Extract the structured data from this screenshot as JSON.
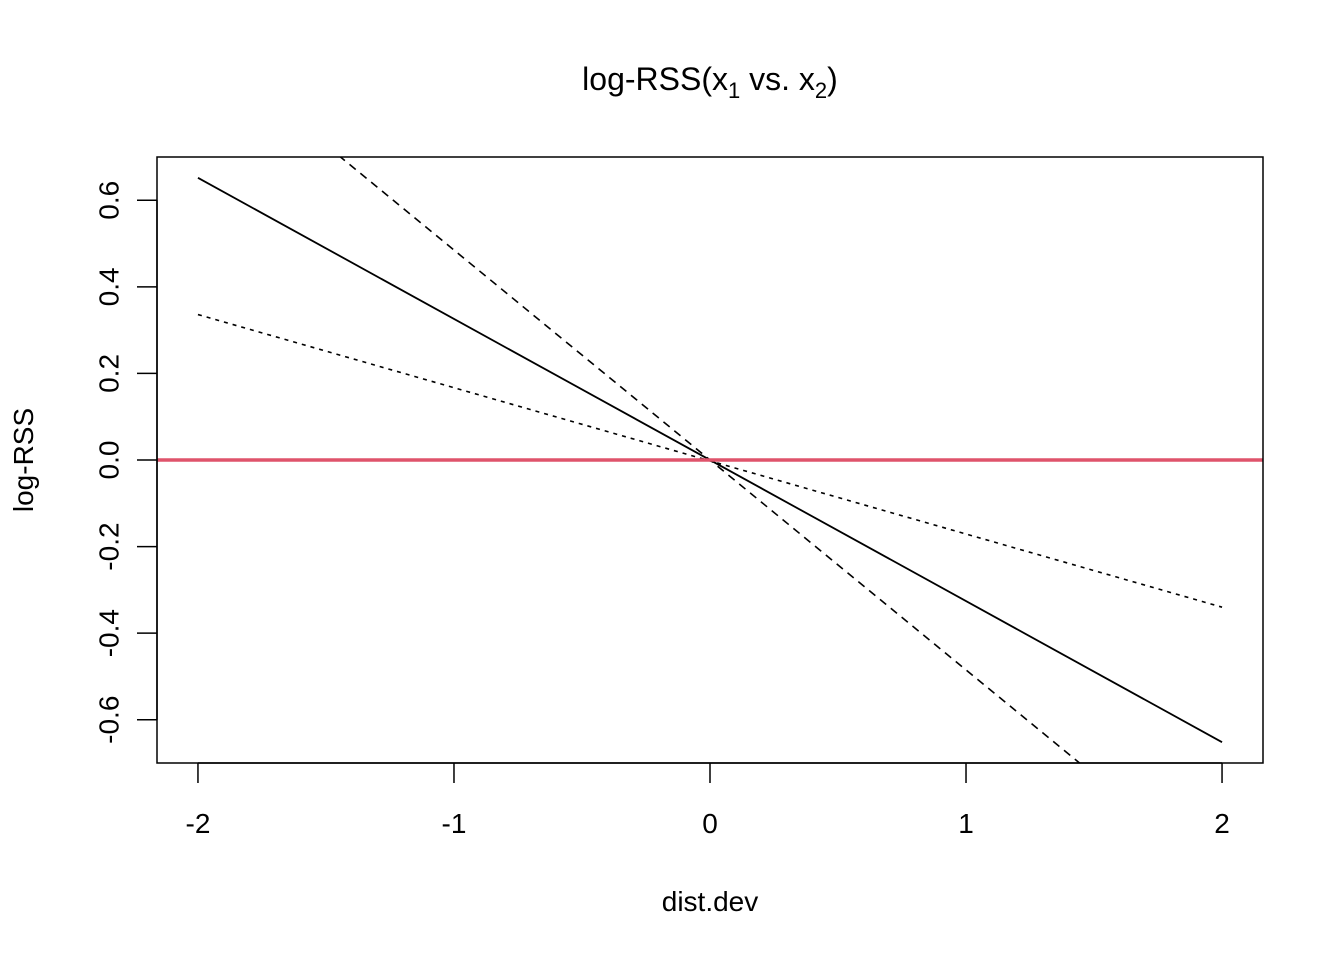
{
  "chart_data": {
    "type": "line",
    "title_main": "log-RSS(x",
    "title_sub1": "1",
    "title_mid": " vs. x",
    "title_sub2": "2",
    "title_end": ")",
    "xlabel": "dist.dev",
    "ylabel": "log-RSS",
    "xlim": [
      -2.16,
      2.16
    ],
    "ylim": [
      -0.7,
      0.7
    ],
    "x_ticks": [
      -2,
      -1,
      0,
      1,
      2
    ],
    "x_tick_labels": [
      "-2",
      "-1",
      "0",
      "1",
      "2"
    ],
    "y_ticks": [
      -0.6,
      -0.4,
      -0.2,
      0.0,
      0.2,
      0.4,
      0.6
    ],
    "y_tick_labels": [
      "-0.6",
      "-0.4",
      "-0.2",
      "0.0",
      "0.2",
      "0.4",
      "0.6"
    ],
    "grid": false,
    "series": [
      {
        "style": "solid",
        "color": "#000000",
        "x": [
          -2,
          2
        ],
        "y": [
          0.652,
          -0.652
        ]
      },
      {
        "style": "dashed",
        "color": "#000000",
        "x": [
          -2,
          2
        ],
        "y": [
          0.97,
          -0.97
        ]
      },
      {
        "style": "dotted",
        "color": "#000000",
        "x": [
          -2,
          2
        ],
        "y": [
          0.336,
          -0.34
        ]
      },
      {
        "style": "solid-thick",
        "color": "#DF536B",
        "x": [
          -2.16,
          2.16
        ],
        "y": [
          0.0,
          0.0
        ]
      }
    ]
  }
}
